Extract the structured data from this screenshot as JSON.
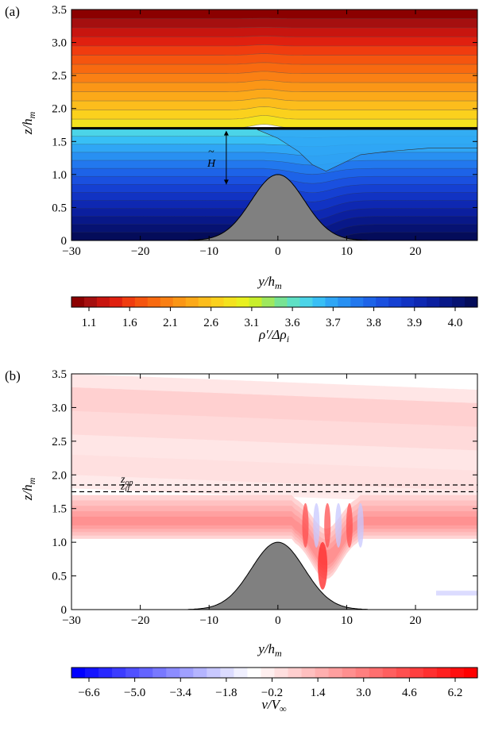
{
  "chart_data": [
    {
      "type": "heatmap",
      "panel_label": "(a)",
      "xlabel": "y/h",
      "xlabel_sub": "m",
      "ylabel": "z/h",
      "ylabel_sub": "m",
      "xlim": [
        -30,
        29
      ],
      "ylim": [
        0,
        3.5
      ],
      "x_ticks": [
        -30,
        -20,
        -10,
        0,
        10,
        20
      ],
      "x_tick_labels": [
        "−30",
        "−20",
        "−10",
        "0",
        "10",
        "20"
      ],
      "y_ticks": [
        0,
        0.5,
        1.0,
        1.5,
        2.0,
        2.5,
        3.0,
        3.5
      ],
      "y_tick_labels": [
        "0",
        "0.5",
        "1.0",
        "1.5",
        "2.0",
        "2.5",
        "3.0",
        "3.5"
      ],
      "hill": {
        "height": 1.0,
        "center": 0,
        "half_width": 12
      },
      "interface_height": 1.7,
      "annotation": "H",
      "annotation_accent": "~",
      "colorbar": {
        "label": "ρ′/Δρ",
        "label_sub": "i",
        "tick_labels": [
          "1.1",
          "1.6",
          "2.1",
          "2.6",
          "3.1",
          "3.6",
          "3.7",
          "3.8",
          "3.9",
          "4.0"
        ],
        "colors": [
          "#8b0000",
          "#a50f0f",
          "#c8150f",
          "#e0200f",
          "#f03c0f",
          "#f5550f",
          "#f86a10",
          "#fa8014",
          "#fb9616",
          "#fca919",
          "#fcbd1c",
          "#fbd11d",
          "#f4e21e",
          "#e8f01f",
          "#c8ee2c",
          "#9ee85e",
          "#78e394",
          "#5ee0c4",
          "#4bd4e8",
          "#38bff5",
          "#2fa6f5",
          "#2890f2",
          "#2278ee",
          "#1d63e8",
          "#1a50df",
          "#1540d2",
          "#1133c3",
          "#0e28b2",
          "#0b1f9f",
          "#081888",
          "#061272",
          "#040c5a"
        ]
      }
    },
    {
      "type": "heatmap",
      "panel_label": "(b)",
      "xlabel": "y/h",
      "xlabel_sub": "m",
      "ylabel": "z/h",
      "ylabel_sub": "m",
      "xlim": [
        -30,
        29
      ],
      "ylim": [
        0,
        3.5
      ],
      "x_ticks": [
        -30,
        -20,
        -10,
        0,
        10,
        20
      ],
      "x_tick_labels": [
        "−30",
        "−20",
        "−10",
        "0",
        "10",
        "20"
      ],
      "y_ticks": [
        0,
        0.5,
        1.0,
        1.5,
        2.0,
        2.5,
        3.0,
        3.5
      ],
      "y_tick_labels": [
        "0",
        "0.5",
        "1.0",
        "1.5",
        "2.0",
        "2.5",
        "3.0",
        "3.5"
      ],
      "hill": {
        "height": 1.0,
        "center": 0,
        "half_width": 12
      },
      "reference_lines": [
        {
          "label": "z",
          "label_sub": "op",
          "z": 1.85
        },
        {
          "label": "z",
          "label_sub": "0",
          "z": 1.75
        }
      ],
      "colorbar": {
        "label": "v/V",
        "label_sub": "∞",
        "tick_labels": [
          "−6.6",
          "−5.0",
          "−3.4",
          "−1.8",
          "−0.2",
          "1.4",
          "3.0",
          "4.6",
          "6.2"
        ],
        "colors": [
          "#0000ff",
          "#1414ff",
          "#2828ff",
          "#3c3cff",
          "#5050ff",
          "#6464ff",
          "#7878ff",
          "#8c8cff",
          "#a0a0ff",
          "#b4b4ff",
          "#c8c8ff",
          "#dcdcff",
          "#f0f0ff",
          "#ffffff",
          "#ffefef",
          "#ffdfdf",
          "#ffcfcf",
          "#ffbfbf",
          "#ffafaf",
          "#ff9f9f",
          "#ff8f8f",
          "#ff7f7f",
          "#ff6f6f",
          "#ff5f5f",
          "#ff4f4f",
          "#ff3f3f",
          "#ff2f2f",
          "#ff1f1f",
          "#ff0f0f",
          "#ff0000"
        ]
      }
    }
  ]
}
